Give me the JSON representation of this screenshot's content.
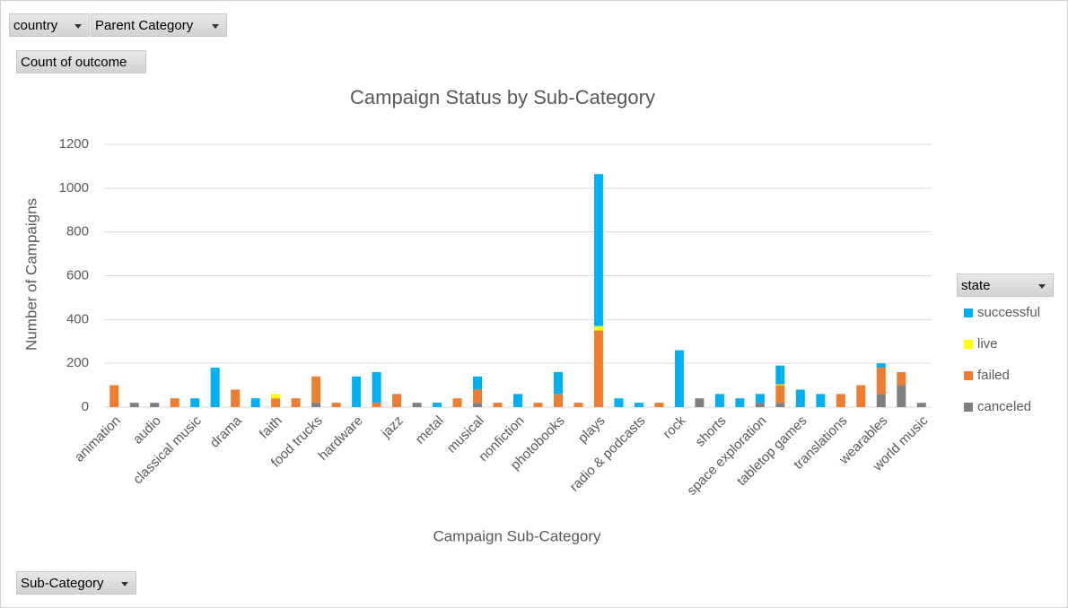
{
  "buttons": {
    "country": "country",
    "parent_category": "Parent Category",
    "values_field": "Count of outcome",
    "legend_field": "state",
    "axis_field": "Sub-Category"
  },
  "chart_data": {
    "type": "bar",
    "stacked": true,
    "title": "Campaign Status by Sub-Category",
    "x_label": "Campaign Sub-Category",
    "y_label": "Number of Campaigns",
    "categories": [
      "animation",
      null,
      "audio",
      null,
      "classical music",
      null,
      "drama",
      null,
      "faith",
      null,
      "food trucks",
      null,
      "hardware",
      null,
      "jazz",
      null,
      "metal",
      null,
      "musical",
      null,
      "nonfiction",
      null,
      "photobooks",
      null,
      "plays",
      null,
      "radio & podcasts",
      null,
      "rock",
      null,
      "shorts",
      null,
      "space exploration",
      null,
      "tabletop games",
      null,
      "translations",
      null,
      "wearables",
      null,
      "world music"
    ],
    "series": [
      {
        "name": "successful",
        "color": "#00b0f0",
        "values": [
          null,
          null,
          null,
          null,
          40,
          180,
          null,
          40,
          null,
          null,
          null,
          null,
          140,
          140,
          null,
          null,
          20,
          null,
          60,
          null,
          60,
          null,
          100,
          null,
          694,
          40,
          20,
          null,
          260,
          null,
          60,
          40,
          40,
          86,
          80,
          60,
          null,
          null,
          20,
          null,
          null
        ]
      },
      {
        "name": "live",
        "color": "#ffff00",
        "values": [
          null,
          null,
          null,
          null,
          null,
          null,
          null,
          null,
          20,
          null,
          null,
          null,
          null,
          null,
          null,
          null,
          null,
          null,
          null,
          null,
          null,
          null,
          null,
          null,
          20,
          null,
          null,
          null,
          null,
          null,
          null,
          null,
          null,
          4,
          null,
          null,
          null,
          null,
          null,
          null,
          null
        ]
      },
      {
        "name": "failed",
        "color": "#ed7d31",
        "values": [
          100,
          null,
          null,
          40,
          null,
          null,
          80,
          null,
          40,
          40,
          120,
          20,
          null,
          20,
          60,
          null,
          null,
          40,
          60,
          20,
          null,
          20,
          60,
          20,
          350,
          null,
          null,
          20,
          null,
          null,
          null,
          null,
          null,
          80,
          null,
          null,
          60,
          100,
          120,
          60,
          null
        ]
      },
      {
        "name": "canceled",
        "color": "#7f7f7f",
        "values": [
          null,
          20,
          20,
          null,
          null,
          null,
          null,
          null,
          null,
          null,
          20,
          null,
          null,
          null,
          null,
          20,
          null,
          null,
          20,
          null,
          null,
          null,
          null,
          null,
          null,
          null,
          null,
          null,
          null,
          40,
          null,
          null,
          20,
          20,
          null,
          null,
          null,
          null,
          60,
          100,
          20
        ]
      }
    ],
    "ylim": [
      0,
      1200
    ],
    "yticks": [
      0,
      200,
      400,
      600,
      800,
      1000,
      1200
    ],
    "grid": true,
    "legend": "right"
  }
}
